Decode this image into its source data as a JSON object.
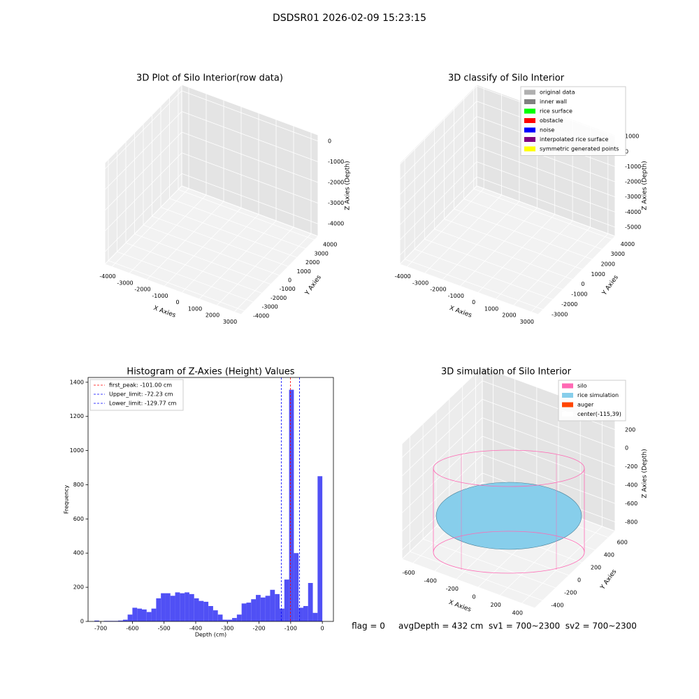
{
  "title": "DSDSR01 2026-02-09 15:23:15",
  "footer": "flag = 0     avgDepth = 432 cm  sv1 = 700~2300  sv2 = 700~2300",
  "chart_data": [
    {
      "type": "scatter3d",
      "title": "3D Plot of Silo Interior(row data)",
      "xlabel": "X Axies",
      "ylabel": "Y Axies",
      "zlabel": "Z Axies (Depth)",
      "xlim": [
        -4400,
        3400
      ],
      "xticks": [
        -4000,
        -3000,
        -2000,
        -1000,
        0,
        1000,
        2000,
        3000
      ],
      "ylim": [
        -4400,
        4400
      ],
      "yticks": [
        -4000,
        -3000,
        -2000,
        -1000,
        0,
        1000,
        2000,
        3000,
        4000
      ],
      "zlim": [
        -4600,
        300
      ],
      "zticks": [
        -4000,
        -3000,
        -2000,
        -1000,
        0
      ]
    },
    {
      "type": "scatter3d",
      "title": "3D classify of Silo Interior",
      "xlabel": "X Axies",
      "ylabel": "Y Axies",
      "zlabel": "Z Axies (Depth)",
      "xlim": [
        -4400,
        3400
      ],
      "xticks": [
        -4000,
        -3000,
        -2000,
        -1000,
        0,
        1000,
        2000,
        3000
      ],
      "ylim": [
        -3500,
        4300
      ],
      "yticks": [
        -3000,
        -2000,
        -1000,
        0,
        1000,
        2000,
        3000,
        4000
      ],
      "zlim": [
        -5600,
        1100
      ],
      "zticks": [
        -5000,
        -4000,
        -3000,
        -2000,
        -1000,
        0,
        1000
      ],
      "legend": [
        {
          "name": "original data",
          "color": "#b0b0b0"
        },
        {
          "name": "inner wall",
          "color": "#808080"
        },
        {
          "name": "rice surface",
          "color": "#00ff00"
        },
        {
          "name": "obstacle",
          "color": "#ff0000"
        },
        {
          "name": "noise",
          "color": "#0000ff"
        },
        {
          "name": "interpolated rice surface",
          "color": "#800080"
        },
        {
          "name": "symmetric generated points",
          "color": "#ffff00"
        }
      ]
    },
    {
      "type": "histogram",
      "title": "Histogram of Z-Axies (Height) Values",
      "xlabel": "Depth (cm)",
      "ylabel": "Frequency",
      "color": "#5050f5",
      "bins": [
        -720,
        -705,
        -690,
        -675,
        -660,
        -645,
        -630,
        -615,
        -600,
        -585,
        -570,
        -555,
        -540,
        -525,
        -510,
        -495,
        -480,
        -465,
        -450,
        -435,
        -420,
        -405,
        -390,
        -375,
        -360,
        -345,
        -330,
        -315,
        -300,
        -285,
        -270,
        -255,
        -240,
        -225,
        -210,
        -195,
        -180,
        -165,
        -150,
        -135,
        -120,
        -105,
        -90,
        -75,
        -60,
        -45,
        -30,
        -15,
        0
      ],
      "values": [
        5,
        0,
        3,
        3,
        3,
        5,
        10,
        40,
        80,
        75,
        70,
        55,
        75,
        135,
        165,
        165,
        150,
        170,
        165,
        170,
        160,
        135,
        120,
        115,
        90,
        65,
        40,
        10,
        10,
        20,
        40,
        105,
        110,
        130,
        155,
        140,
        150,
        185,
        160,
        75,
        245,
        1356,
        400,
        80,
        90,
        225,
        50,
        850
      ],
      "xlim": [
        -740,
        35
      ],
      "xticks": [
        -700,
        -600,
        -500,
        -400,
        -300,
        -200,
        -100,
        0
      ],
      "ylim": [
        0,
        1428
      ],
      "yticks": [
        0,
        200,
        400,
        600,
        800,
        1000,
        1200,
        1400
      ],
      "vlines": [
        {
          "name": "first_peak: -101.00 cm",
          "value": -101,
          "color": "#ff0000"
        },
        {
          "name": "Upper_limit: -72.23 cm",
          "value": -72.23,
          "color": "#0000ff"
        },
        {
          "name": "Lower_limit: -129.77 cm",
          "value": -129.77,
          "color": "#0000ff"
        }
      ]
    },
    {
      "type": "surface3d",
      "title": "3D simulation of Silo Interior",
      "xlabel": "X Axies",
      "ylabel": "Y Axies",
      "zlabel": "Z Axies (Depth)",
      "xlim": [
        -700,
        520
      ],
      "xticks": [
        -600,
        -400,
        -200,
        0,
        200,
        400
      ],
      "ylim": [
        -520,
        700
      ],
      "yticks": [
        -400,
        -200,
        0,
        200,
        400,
        600
      ],
      "zlim": [
        -900,
        350
      ],
      "zticks": [
        -800,
        -600,
        -400,
        -200,
        0,
        200
      ],
      "legend": [
        {
          "name": "silo",
          "color": "#ff69b4"
        },
        {
          "name": "rice simulation",
          "color": "#87ceeb"
        },
        {
          "name": "auger",
          "color": "#ff4500"
        },
        {
          "name": "center(-115,39)",
          "color": "#ffffff"
        }
      ]
    }
  ]
}
